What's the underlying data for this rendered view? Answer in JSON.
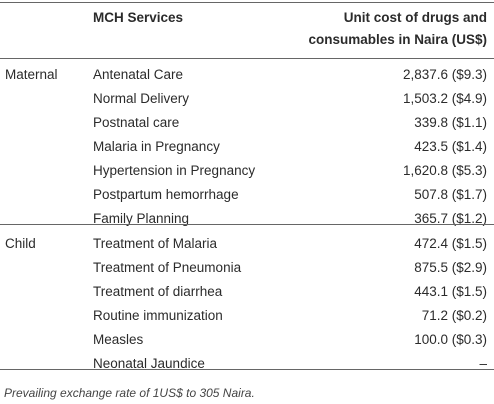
{
  "table": {
    "header": [
      "MCH Services",
      "Unit cost of drugs and consumables in Naira (US$)"
    ],
    "groups": [
      {
        "label": "Maternal",
        "rows": [
          [
            "Antenatal Care",
            "2,837.6 ($9.3)"
          ],
          [
            "Normal Delivery",
            "1,503.2 ($4.9)"
          ],
          [
            "Postnatal care",
            "339.8 ($1.1)"
          ],
          [
            "Malaria in Pregnancy",
            "423.5 ($1.4)"
          ],
          [
            "Hypertension in Pregnancy",
            "1,620.8 ($5.3)"
          ],
          [
            "Postpartum hemorrhage",
            "507.8 ($1.7)"
          ],
          [
            "Family Planning",
            "365.7 ($1.2)"
          ]
        ]
      },
      {
        "label": "Child",
        "rows": [
          [
            "Treatment of Malaria",
            "472.4 ($1.5)"
          ],
          [
            "Treatment of Pneumonia",
            "875.5 ($2.9)"
          ],
          [
            "Treatment of diarrhea",
            "443.1 ($1.5)"
          ],
          [
            "Routine immunization",
            "71.2 ($0.2)"
          ],
          [
            "Measles",
            "100.0 ($0.3)"
          ],
          [
            "Neonatal Jaundice",
            "–"
          ]
        ]
      }
    ],
    "footnote": "Prevailing exchange rate of 1US$ to 305 Naira."
  }
}
